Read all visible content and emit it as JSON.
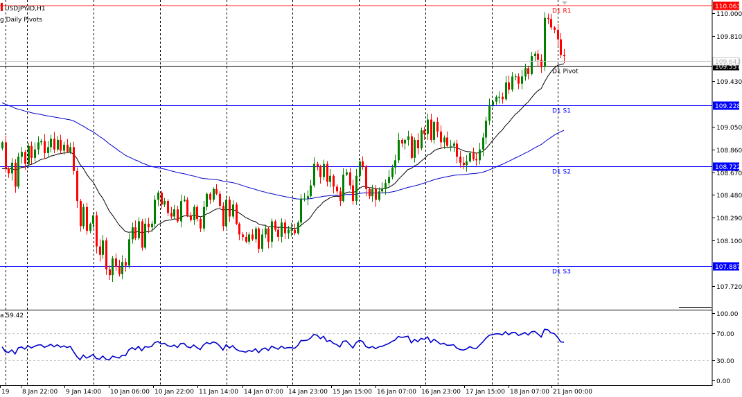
{
  "header": {
    "symbol_label": "USDJPY.ID,H1",
    "indicator_label": "g Daily Pivots"
  },
  "rsi_panel": {
    "label": "a 59.42",
    "levels": [
      {
        "label": "100.00",
        "value": 100
      },
      {
        "label": "70.00",
        "value": 70
      },
      {
        "label": "30.00",
        "value": 30
      },
      {
        "label": "0.00",
        "value": 0
      }
    ]
  },
  "price_axis": {
    "ticks": [
      "110.000",
      "109.810",
      "109.430",
      "109.050",
      "108.860",
      "108.670",
      "108.480",
      "108.290",
      "108.100",
      "107.720"
    ],
    "current_price_label": "109.643"
  },
  "pivots": [
    {
      "name": "D1 R1",
      "value": 110.063,
      "label": "110.063",
      "color": "#ff0000"
    },
    {
      "name": "D1 Pivot",
      "value": 109.557,
      "label": "109.557",
      "color": "#000000"
    },
    {
      "name": "D1 S1",
      "value": 109.228,
      "label": "109.228",
      "color": "#0000ff"
    },
    {
      "name": "D1 S2",
      "value": 108.722,
      "label": "108.722",
      "color": "#0000ff"
    },
    {
      "name": "D1 S3",
      "value": 107.887,
      "label": "107.887",
      "color": "#0000ff"
    }
  ],
  "time_axis": {
    "labels": [
      "19",
      "8 Jan 22:00",
      "9 Jan 14:00",
      "10 Jan 06:00",
      "10 Jan 22:00",
      "11 Jan 14:00",
      "14 Jan 07:00",
      "14 Jan 23:00",
      "15 Jan 15:00",
      "16 Jan 07:00",
      "16 Jan 23:00",
      "17 Jan 15:00",
      "18 Jan 07:00",
      "21 Jan 00:00"
    ]
  },
  "chart_data": {
    "type": "candlestick",
    "symbol": "USDJPY.ID",
    "timeframe": "H1",
    "ylim": [
      107.62,
      110.08
    ],
    "grid": "vertical-dashed",
    "colors": {
      "bull": "#008000",
      "bear": "#ff0000",
      "ma_slow": "#0000cc",
      "ma_fast": "#000000",
      "rsi": "#0000cc"
    },
    "close": [
      108.92,
      108.7,
      108.66,
      108.75,
      108.55,
      108.8,
      108.84,
      108.74,
      108.89,
      108.79,
      108.86,
      108.92,
      108.93,
      108.83,
      108.88,
      108.95,
      108.86,
      108.94,
      108.85,
      108.9,
      108.84,
      108.88,
      108.68,
      108.43,
      108.22,
      108.38,
      108.18,
      108.24,
      108.31,
      108.05,
      107.98,
      108.1,
      107.86,
      107.81,
      107.95,
      107.88,
      107.82,
      107.92,
      107.89,
      108.11,
      108.21,
      108.12,
      108.26,
      108.04,
      108.24,
      108.21,
      108.24,
      108.44,
      108.5,
      108.4,
      108.43,
      108.33,
      108.3,
      108.36,
      108.26,
      108.43,
      108.44,
      108.31,
      108.27,
      108.38,
      108.28,
      108.2,
      108.38,
      108.49,
      108.44,
      108.53,
      108.49,
      108.39,
      108.22,
      108.44,
      108.3,
      108.4,
      108.24,
      108.15,
      108.13,
      108.09,
      108.15,
      108.11,
      108.2,
      108.03,
      108.15,
      108.2,
      108.09,
      108.26,
      108.19,
      108.13,
      108.25,
      108.16,
      108.19,
      108.19,
      108.16,
      108.25,
      108.45,
      108.45,
      108.47,
      108.56,
      108.74,
      108.72,
      108.63,
      108.74,
      108.59,
      108.64,
      108.55,
      108.51,
      108.43,
      108.65,
      108.67,
      108.56,
      108.43,
      108.64,
      108.76,
      108.72,
      108.53,
      108.47,
      108.53,
      108.44,
      108.51,
      108.53,
      108.58,
      108.63,
      108.71,
      108.77,
      108.94,
      108.91,
      108.94,
      108.97,
      108.79,
      108.94,
      108.87,
      109.02,
      108.99,
      109.11,
      108.94,
      109.09,
      109.01,
      108.92,
      108.96,
      108.89,
      108.89,
      108.91,
      108.8,
      108.75,
      108.73,
      108.76,
      108.83,
      108.78,
      108.77,
      108.86,
      108.96,
      109.1,
      109.23,
      109.26,
      109.3,
      109.3,
      109.28,
      109.42,
      109.36,
      109.47,
      109.47,
      109.41,
      109.47,
      109.54,
      109.49,
      109.64,
      109.66,
      109.61,
      109.55,
      109.96,
      109.95,
      109.88,
      109.86,
      109.78,
      109.65,
      109.64
    ]
  }
}
